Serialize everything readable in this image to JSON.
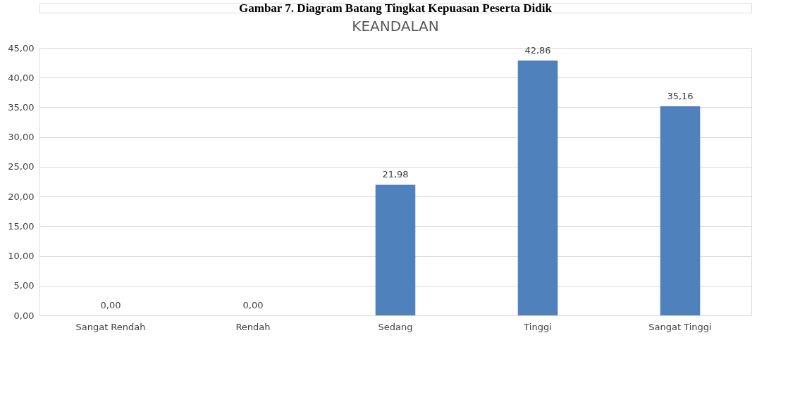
{
  "chart_data": {
    "type": "bar",
    "title": "KEANDALAN",
    "annotations": [
      "Gambar 7. Diagram Batang Tingkat Kepuasan Peserta Didik"
    ],
    "categories": [
      "Sangat Rendah",
      "Rendah",
      "Sedang",
      "Tinggi",
      "Sangat Tinggi"
    ],
    "values": [
      0,
      0,
      21.98,
      42.86,
      35.16
    ],
    "color": "#4f81bd",
    "value_labels": [
      "0,00",
      "0,00",
      "21,98",
      "42,86",
      "35,16"
    ],
    "ylim": [
      0,
      45
    ],
    "yticks": [
      {
        "value": 0,
        "label": "0,00"
      },
      {
        "value": 5,
        "label": "5,00"
      },
      {
        "value": 10,
        "label": "10,00"
      },
      {
        "value": 15,
        "label": "15,00"
      },
      {
        "value": 20,
        "label": "20,00"
      },
      {
        "value": 25,
        "label": "25,00"
      },
      {
        "value": 30,
        "label": "30,00"
      },
      {
        "value": 35,
        "label": "35,00"
      },
      {
        "value": 40,
        "label": "40,00"
      },
      {
        "value": 45,
        "label": "45,00"
      }
    ],
    "grid": "y"
  }
}
